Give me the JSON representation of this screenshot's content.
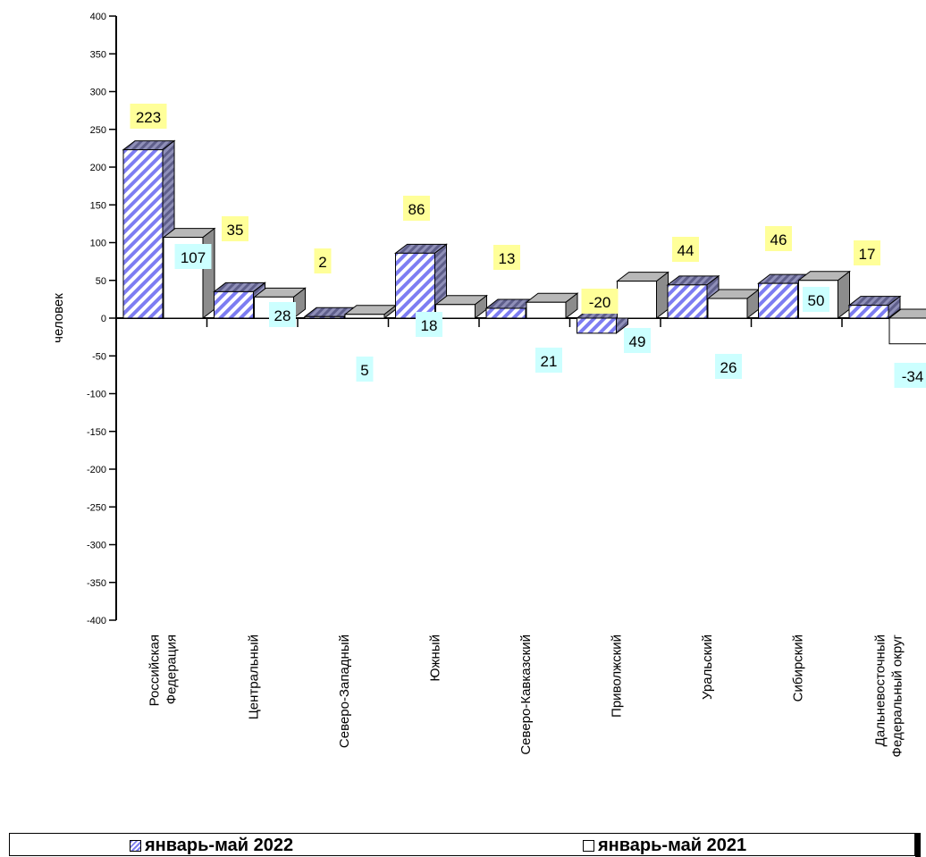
{
  "chart_data": {
    "type": "bar",
    "ylabel": "человек",
    "ylim": [
      -400,
      400
    ],
    "yticks": [
      400,
      350,
      300,
      250,
      200,
      150,
      100,
      50,
      0,
      -50,
      -100,
      -150,
      -200,
      -250,
      -300,
      -350,
      -400
    ],
    "categories": [
      "Российская Федерация",
      "Центральный",
      "Северо-Западный",
      "Южный",
      "Северо-Кавказский",
      "Приволжский",
      "Уральский",
      "Сибирский",
      "Дальневосточный Федеральный округ"
    ],
    "series": [
      {
        "name": "январь-май 2022",
        "values": [
          223,
          35,
          2,
          86,
          13,
          -20,
          44,
          46,
          17
        ]
      },
      {
        "name": "январь-май 2021",
        "values": [
          107,
          28,
          5,
          18,
          21,
          49,
          26,
          50,
          -34
        ]
      }
    ],
    "legend_position": "bottom",
    "grid": false
  },
  "colors": {
    "series_2022_hatch": "#7d7df2",
    "bar_side_2022": "#6b6b9e",
    "bar_top": "#b8b8b8",
    "bar_side": "#8c8c8c",
    "label_2022_bg": "#ffff99",
    "label_2021_bg": "#ccffff"
  }
}
